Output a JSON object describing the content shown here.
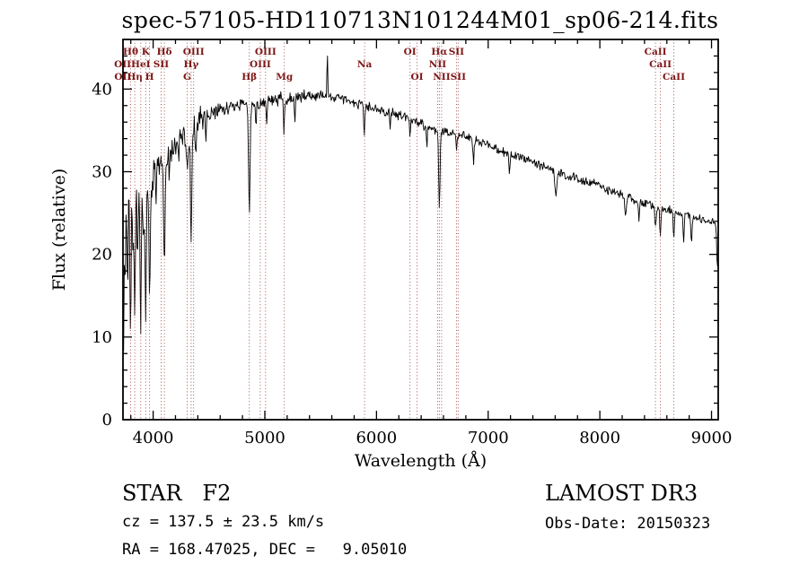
{
  "chart_data": {
    "type": "line",
    "title": "spec-57105-HD110713N101244M01_sp06-214.fits",
    "xlabel": "Wavelength (Å)",
    "ylabel": "Flux (relative)",
    "xlim": [
      3730,
      9060
    ],
    "ylim": [
      0,
      46
    ],
    "xticks": [
      4000,
      5000,
      6000,
      7000,
      8000,
      9000
    ],
    "yticks": [
      0,
      10,
      20,
      30,
      40
    ],
    "x_minor_step": 200,
    "y_minor_step": 2,
    "grid": false,
    "legend": "none",
    "line_color": "#000000",
    "marker_color": "#a04040",
    "marker_label_color": "#7d1616",
    "noise_seed": 12.9898,
    "noise_regions": [
      [
        4000,
        3.0
      ],
      [
        4450,
        1.6
      ],
      [
        5400,
        0.85
      ],
      [
        6900,
        0.6
      ],
      [
        9100,
        0.55
      ]
    ],
    "continuum": [
      [
        3730,
        24
      ],
      [
        3760,
        25.5
      ],
      [
        3800,
        26.5
      ],
      [
        3850,
        27
      ],
      [
        3900,
        28
      ],
      [
        3950,
        29
      ],
      [
        4000,
        30
      ],
      [
        4050,
        30.8
      ],
      [
        4100,
        31.4
      ],
      [
        4150,
        32.3
      ],
      [
        4200,
        33.2
      ],
      [
        4250,
        34.2
      ],
      [
        4300,
        35
      ],
      [
        4350,
        35.5
      ],
      [
        4400,
        36
      ],
      [
        4450,
        36.4
      ],
      [
        4500,
        36.8
      ],
      [
        4600,
        37.4
      ],
      [
        4700,
        37.8
      ],
      [
        4800,
        38
      ],
      [
        4900,
        38.2
      ],
      [
        5000,
        38.4
      ],
      [
        5100,
        38.7
      ],
      [
        5200,
        38.9
      ],
      [
        5300,
        39
      ],
      [
        5400,
        39.2
      ],
      [
        5500,
        39.3
      ],
      [
        5600,
        39.1
      ],
      [
        5700,
        38.7
      ],
      [
        5800,
        38.3
      ],
      [
        5900,
        38
      ],
      [
        6000,
        37.6
      ],
      [
        6100,
        37.2
      ],
      [
        6200,
        36.8
      ],
      [
        6300,
        36.3
      ],
      [
        6400,
        35.8
      ],
      [
        6500,
        35.2
      ],
      [
        6600,
        34.8
      ],
      [
        6700,
        34.5
      ],
      [
        6800,
        34.3
      ],
      [
        6900,
        33.8
      ],
      [
        7000,
        33.2
      ],
      [
        7100,
        32.6
      ],
      [
        7200,
        32.1
      ],
      [
        7300,
        31.6
      ],
      [
        7400,
        31.1
      ],
      [
        7500,
        30.6
      ],
      [
        7600,
        30.1
      ],
      [
        7700,
        29.6
      ],
      [
        7800,
        29.1
      ],
      [
        7900,
        28.7
      ],
      [
        8000,
        28.3
      ],
      [
        8100,
        27.7
      ],
      [
        8200,
        27.2
      ],
      [
        8300,
        26.7
      ],
      [
        8400,
        26.2
      ],
      [
        8500,
        25.8
      ],
      [
        8600,
        25.4
      ],
      [
        8700,
        25
      ],
      [
        8800,
        24.6
      ],
      [
        8900,
        24.2
      ],
      [
        9000,
        23.9
      ],
      [
        9040,
        23.8
      ],
      [
        9060,
        21
      ]
    ],
    "absorption_features": [
      [
        3734,
        14,
        4
      ],
      [
        3750,
        9,
        4
      ],
      [
        3771,
        10,
        4
      ],
      [
        3798,
        13,
        5
      ],
      [
        3820,
        7,
        4
      ],
      [
        3835,
        15,
        5
      ],
      [
        3860,
        6,
        4
      ],
      [
        3889,
        19,
        5
      ],
      [
        3914,
        5,
        4
      ],
      [
        3933,
        16,
        6
      ],
      [
        3968,
        15,
        6
      ],
      [
        4026,
        4,
        4
      ],
      [
        4101,
        12,
        7
      ],
      [
        4144,
        3,
        4
      ],
      [
        4226,
        3,
        4
      ],
      [
        4305,
        5,
        8
      ],
      [
        4340,
        13,
        7
      ],
      [
        4383,
        4,
        4
      ],
      [
        4472,
        3,
        4
      ],
      [
        4861,
        13,
        7
      ],
      [
        4921,
        3,
        4
      ],
      [
        5015,
        2.5,
        4
      ],
      [
        5172,
        4,
        6
      ],
      [
        5270,
        2.5,
        5
      ],
      [
        5560,
        -5.5,
        3
      ],
      [
        5890,
        3.5,
        5
      ],
      [
        6122,
        2,
        4
      ],
      [
        6300,
        2,
        4
      ],
      [
        6450,
        2.5,
        4
      ],
      [
        6563,
        9.5,
        6
      ],
      [
        6717,
        2.5,
        4
      ],
      [
        6870,
        2.5,
        6
      ],
      [
        7190,
        2,
        5
      ],
      [
        7605,
        3,
        8
      ],
      [
        8230,
        2.5,
        6
      ],
      [
        8350,
        2.5,
        4
      ],
      [
        8498,
        2.5,
        5
      ],
      [
        8542,
        3.5,
        5
      ],
      [
        8662,
        3.5,
        5
      ],
      [
        8750,
        3,
        5
      ],
      [
        8820,
        3,
        5
      ],
      [
        9052,
        4,
        6
      ]
    ],
    "line_markers": [
      {
        "wl": 3727,
        "label": "OII",
        "row": 2
      },
      {
        "wl": 3729,
        "label": "OII",
        "row": 3
      },
      {
        "wl": 3798,
        "label": "Hθ",
        "row": 1
      },
      {
        "wl": 3835,
        "label": "Hη",
        "row": 3
      },
      {
        "wl": 3889,
        "label": "HeI",
        "row": 2
      },
      {
        "wl": 3933,
        "label": "K",
        "row": 1
      },
      {
        "wl": 3968,
        "label": "H",
        "row": 3
      },
      {
        "wl": 4072,
        "label": "SII",
        "row": 2
      },
      {
        "wl": 4101,
        "label": "Hδ",
        "row": 1
      },
      {
        "wl": 4305,
        "label": "G",
        "row": 3
      },
      {
        "wl": 4340,
        "label": "Hγ",
        "row": 2
      },
      {
        "wl": 4363,
        "label": "OIII",
        "row": 1
      },
      {
        "wl": 4861,
        "label": "Hβ",
        "row": 3
      },
      {
        "wl": 4959,
        "label": "OIII",
        "row": 2
      },
      {
        "wl": 5007,
        "label": "OIII",
        "row": 1
      },
      {
        "wl": 5175,
        "label": "Mg",
        "row": 3
      },
      {
        "wl": 5893,
        "label": "Na",
        "row": 2
      },
      {
        "wl": 6300,
        "label": "OI",
        "row": 1
      },
      {
        "wl": 6363,
        "label": "OI",
        "row": 3
      },
      {
        "wl": 6548,
        "label": "NII",
        "row": 2
      },
      {
        "wl": 6563,
        "label": "Hα",
        "row": 1
      },
      {
        "wl": 6583,
        "label": "NII",
        "row": 3
      },
      {
        "wl": 6716,
        "label": "SII",
        "row": 1
      },
      {
        "wl": 6731,
        "label": "SII",
        "row": 3
      },
      {
        "wl": 8498,
        "label": "CaII",
        "row": 1
      },
      {
        "wl": 8542,
        "label": "CaII",
        "row": 2
      },
      {
        "wl": 8662,
        "label": "CaII",
        "row": 3
      }
    ]
  },
  "annotations": {
    "class_label": "STAR   F2",
    "survey": "LAMOST DR3",
    "cz_line": "cz = 137.5 ± 23.5 km/s",
    "obs_date_line": "Obs-Date: 20150323",
    "coord_line": "RA = 168.47025, DEC =   9.05010"
  }
}
